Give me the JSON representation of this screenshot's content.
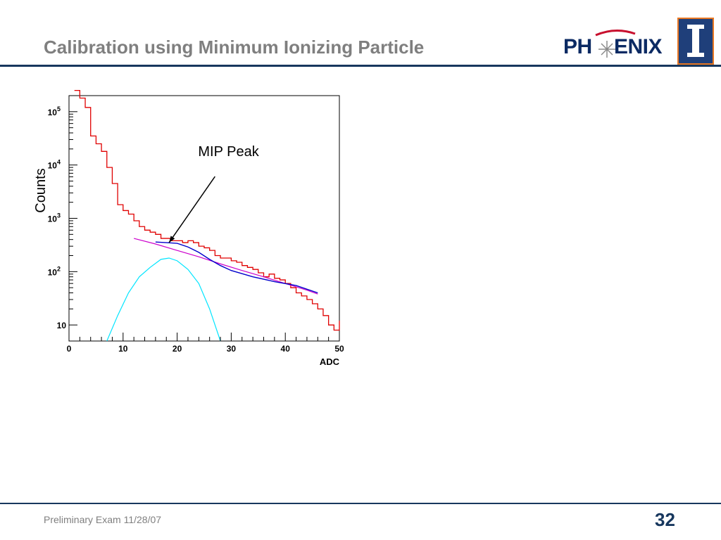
{
  "slide": {
    "title": "Calibration using Minimum Ionizing Particle",
    "footer": "Preliminary Exam 11/28/07",
    "page_number": "32"
  },
  "logo": {
    "text_left": "PH",
    "text_right": "ENIX",
    "icons": [
      "phenix-bird-icon",
      "illinois-block-i-icon"
    ],
    "colors": {
      "navy": "#0b2a63",
      "red": "#c8102e",
      "orange": "#e87722"
    }
  },
  "chart_data": {
    "type": "line",
    "xlabel": "ADC",
    "ylabel": "Counts",
    "xlim": [
      0,
      50
    ],
    "ylim": [
      5,
      200000
    ],
    "yscale": "log",
    "x_ticks": [
      "0",
      "10",
      "20",
      "30",
      "40",
      "50"
    ],
    "y_ticks": [
      {
        "value": 10,
        "label": "10"
      },
      {
        "value": 100,
        "base": "10",
        "exp": "2"
      },
      {
        "value": 1000,
        "base": "10",
        "exp": "3"
      },
      {
        "value": 10000,
        "base": "10",
        "exp": "4"
      },
      {
        "value": 100000,
        "base": "10",
        "exp": "5"
      }
    ],
    "annotation": {
      "text": "MIP Peak",
      "arrow_to": [
        18.5,
        350
      ]
    },
    "colors": {
      "histogram": "#e00000",
      "background_fit": "#cc00cc",
      "gaussian_fit": "#00e5ff",
      "total_fit": "#0000cc"
    },
    "series": [
      {
        "style": "histogram",
        "bins_left_edge": [
          1,
          2,
          3,
          4,
          5,
          6,
          7,
          8,
          9,
          10,
          11,
          12,
          13,
          14,
          15,
          16,
          17,
          18,
          19,
          20,
          21,
          22,
          23,
          24,
          25,
          26,
          27,
          28,
          29,
          30,
          31,
          32,
          33,
          34,
          35,
          36,
          37,
          38,
          39,
          40,
          41,
          42,
          43,
          44,
          45,
          46,
          47,
          48,
          49,
          50
        ],
        "counts": [
          250000,
          180000,
          120000,
          35000,
          25000,
          18000,
          9000,
          4500,
          1800,
          1400,
          1200,
          900,
          700,
          600,
          550,
          500,
          420,
          420,
          380,
          380,
          350,
          380,
          350,
          300,
          280,
          250,
          200,
          180,
          180,
          160,
          150,
          130,
          120,
          110,
          95,
          80,
          90,
          75,
          70,
          60,
          50,
          40,
          35,
          30,
          25,
          20,
          15,
          10,
          8,
          12
        ]
      },
      {
        "style": "line",
        "x": [
          12,
          16,
          20,
          24,
          28,
          32,
          36,
          40,
          44,
          46
        ],
        "y": [
          420,
          330,
          250,
          190,
          140,
          105,
          80,
          60,
          45,
          38
        ]
      },
      {
        "style": "line",
        "x": [
          7,
          9,
          11,
          13,
          15,
          17,
          18.5,
          20,
          22,
          24,
          26,
          27,
          28
        ],
        "y": [
          5,
          15,
          40,
          80,
          120,
          170,
          180,
          160,
          110,
          60,
          20,
          10,
          5
        ]
      },
      {
        "style": "line",
        "x": [
          16,
          18,
          20,
          22,
          24,
          26,
          28,
          30,
          34,
          38,
          42,
          46
        ],
        "y": [
          360,
          350,
          340,
          290,
          230,
          170,
          130,
          105,
          80,
          65,
          55,
          40
        ]
      }
    ]
  }
}
